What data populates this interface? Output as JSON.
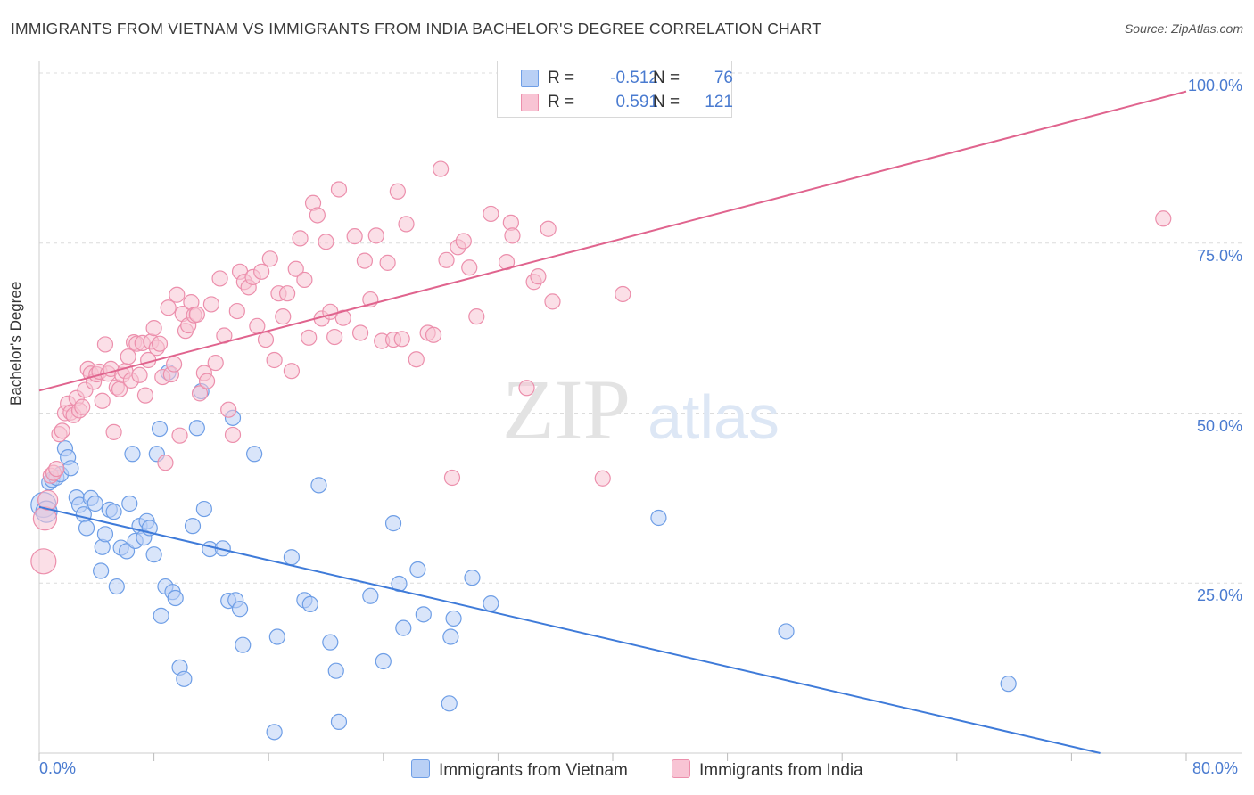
{
  "title": "IMMIGRANTS FROM VIETNAM VS IMMIGRANTS FROM INDIA BACHELOR'S DEGREE CORRELATION CHART",
  "source": "Source: ZipAtlas.com",
  "watermark": {
    "zip": "ZIP",
    "atlas": "atlas"
  },
  "legend": {
    "r_label": "R =",
    "n_label": "N =",
    "vietnam": {
      "r": "-0.512",
      "n": "76",
      "color": "#b9d0f5"
    },
    "india": {
      "r": "0.591",
      "n": "121",
      "color": "#f8c4d4"
    }
  },
  "bottom_legend": {
    "vietnam": "Immigrants from Vietnam",
    "india": "Immigrants from India"
  },
  "colors": {
    "vietnam_fill": "#b9d0f5",
    "vietnam_stroke": "#6e9ee6",
    "vietnam_line": "#3f7bd9",
    "india_fill": "#f8c4d4",
    "india_stroke": "#ec8fac",
    "india_line": "#e0648e",
    "tick_text": "#4a7bd0",
    "grid": "#dcdcdc"
  },
  "chart_data": {
    "type": "scatter",
    "title": "IMMIGRANTS FROM VIETNAM VS IMMIGRANTS FROM INDIA BACHELOR'S DEGREE CORRELATION CHART",
    "xlabel": "",
    "ylabel": "Bachelor's Degree",
    "xlim": [
      0,
      80
    ],
    "ylim": [
      0,
      100
    ],
    "x_tick_labels": [
      "0.0%",
      "80.0%"
    ],
    "y_tick_labels": [
      "25.0%",
      "50.0%",
      "75.0%",
      "100.0%"
    ],
    "y_ticks": [
      25,
      50,
      75,
      100
    ],
    "grid": true,
    "legend_position": "top-center",
    "series": [
      {
        "name": "Immigrants from Vietnam",
        "r": -0.512,
        "n": 76,
        "trend": {
          "x": [
            0,
            74
          ],
          "y": [
            36.2,
            0
          ]
        },
        "points": [
          [
            0.3,
            36.5
          ],
          [
            0.5,
            35.5
          ],
          [
            0.7,
            39.8
          ],
          [
            0.9,
            40.2
          ],
          [
            1.2,
            40.5
          ],
          [
            1.5,
            41
          ],
          [
            1.8,
            44.8
          ],
          [
            2,
            43.5
          ],
          [
            2.2,
            41.9
          ],
          [
            2.6,
            37.6
          ],
          [
            2.8,
            36.5
          ],
          [
            3.1,
            35.1
          ],
          [
            3.3,
            33.1
          ],
          [
            3.6,
            37.5
          ],
          [
            3.9,
            36.7
          ],
          [
            4.3,
            26.8
          ],
          [
            4.4,
            30.3
          ],
          [
            4.6,
            32.2
          ],
          [
            4.9,
            35.8
          ],
          [
            5.2,
            35.5
          ],
          [
            5.4,
            24.5
          ],
          [
            5.7,
            30.2
          ],
          [
            6.1,
            29.7
          ],
          [
            6.3,
            36.7
          ],
          [
            6.5,
            44
          ],
          [
            6.7,
            31.2
          ],
          [
            7,
            33.4
          ],
          [
            7.3,
            31.7
          ],
          [
            7.5,
            34.1
          ],
          [
            7.7,
            33.1
          ],
          [
            8,
            29.2
          ],
          [
            8.2,
            44
          ],
          [
            8.4,
            47.7
          ],
          [
            8.5,
            20.2
          ],
          [
            8.8,
            24.5
          ],
          [
            9,
            56
          ],
          [
            9.3,
            23.7
          ],
          [
            9.5,
            22.8
          ],
          [
            9.8,
            12.6
          ],
          [
            10.1,
            10.9
          ],
          [
            10.7,
            33.4
          ],
          [
            11,
            47.8
          ],
          [
            11.3,
            53.2
          ],
          [
            11.5,
            35.9
          ],
          [
            11.9,
            30
          ],
          [
            12.8,
            30.1
          ],
          [
            13.2,
            22.4
          ],
          [
            13.5,
            49.3
          ],
          [
            13.7,
            22.5
          ],
          [
            14,
            21.2
          ],
          [
            14.2,
            15.9
          ],
          [
            15,
            44
          ],
          [
            16.4,
            3.1
          ],
          [
            16.6,
            17.1
          ],
          [
            17.6,
            28.8
          ],
          [
            18.5,
            22.5
          ],
          [
            18.9,
            21.9
          ],
          [
            19.5,
            39.4
          ],
          [
            20.3,
            16.3
          ],
          [
            20.7,
            12.1
          ],
          [
            20.9,
            4.6
          ],
          [
            23.1,
            23.1
          ],
          [
            24,
            13.5
          ],
          [
            24.7,
            33.8
          ],
          [
            25.1,
            24.9
          ],
          [
            25.4,
            18.4
          ],
          [
            26.4,
            27
          ],
          [
            26.8,
            20.4
          ],
          [
            28.7,
            17.1
          ],
          [
            28.9,
            19.8
          ],
          [
            28.6,
            7.3
          ],
          [
            30.2,
            25.8
          ],
          [
            31.5,
            22
          ],
          [
            43.2,
            34.6
          ],
          [
            52.1,
            17.9
          ],
          [
            67.6,
            10.2
          ]
        ]
      },
      {
        "name": "Immigrants from India",
        "r": 0.591,
        "n": 121,
        "trend": {
          "x": [
            0,
            80
          ],
          "y": [
            53.3,
            97.3
          ]
        },
        "points": [
          [
            0.3,
            28.2
          ],
          [
            0.4,
            34.5
          ],
          [
            0.6,
            37.2
          ],
          [
            0.8,
            40.8
          ],
          [
            1,
            41.2
          ],
          [
            1.2,
            41.8
          ],
          [
            1.4,
            46.9
          ],
          [
            1.6,
            47.4
          ],
          [
            1.8,
            50
          ],
          [
            2,
            51.4
          ],
          [
            2.2,
            50.1
          ],
          [
            2.4,
            49.7
          ],
          [
            2.6,
            52.2
          ],
          [
            2.8,
            50.4
          ],
          [
            3,
            50.9
          ],
          [
            3.2,
            53.4
          ],
          [
            3.4,
            56.5
          ],
          [
            3.6,
            55.8
          ],
          [
            3.8,
            54.6
          ],
          [
            4,
            55.7
          ],
          [
            4.2,
            56.1
          ],
          [
            4.4,
            51.8
          ],
          [
            4.6,
            60.1
          ],
          [
            4.8,
            55.8
          ],
          [
            5,
            56.5
          ],
          [
            5.2,
            47.2
          ],
          [
            5.4,
            53.8
          ],
          [
            5.6,
            53.5
          ],
          [
            5.8,
            55.6
          ],
          [
            6,
            56.2
          ],
          [
            6.2,
            58.3
          ],
          [
            6.4,
            54.8
          ],
          [
            6.6,
            60.4
          ],
          [
            6.8,
            60.2
          ],
          [
            7,
            55.6
          ],
          [
            7.2,
            60.3
          ],
          [
            7.4,
            52.6
          ],
          [
            7.6,
            57.8
          ],
          [
            7.8,
            60.5
          ],
          [
            8,
            62.5
          ],
          [
            8.2,
            59.6
          ],
          [
            8.4,
            60.2
          ],
          [
            8.6,
            55.3
          ],
          [
            8.8,
            42.7
          ],
          [
            9,
            65.5
          ],
          [
            9.2,
            55.7
          ],
          [
            9.4,
            57.2
          ],
          [
            9.6,
            67.4
          ],
          [
            9.8,
            46.7
          ],
          [
            10,
            64.6
          ],
          [
            10.2,
            62.1
          ],
          [
            10.4,
            62.9
          ],
          [
            10.6,
            66.3
          ],
          [
            10.8,
            64.4
          ],
          [
            11,
            64.5
          ],
          [
            11.2,
            52.9
          ],
          [
            11.5,
            55.9
          ],
          [
            11.7,
            54.7
          ],
          [
            12,
            66
          ],
          [
            12.3,
            57.4
          ],
          [
            12.6,
            69.8
          ],
          [
            12.9,
            61.4
          ],
          [
            13.2,
            50.5
          ],
          [
            13.5,
            46.8
          ],
          [
            13.8,
            65
          ],
          [
            14,
            70.8
          ],
          [
            14.3,
            69.3
          ],
          [
            14.6,
            68.5
          ],
          [
            14.9,
            70
          ],
          [
            15.2,
            62.8
          ],
          [
            15.5,
            70.8
          ],
          [
            15.8,
            60.8
          ],
          [
            16.1,
            72.7
          ],
          [
            16.4,
            57.8
          ],
          [
            16.7,
            67.6
          ],
          [
            17,
            64.2
          ],
          [
            17.3,
            67.6
          ],
          [
            17.6,
            56.2
          ],
          [
            17.9,
            71.2
          ],
          [
            18.2,
            75.7
          ],
          [
            18.5,
            69.6
          ],
          [
            18.8,
            61.1
          ],
          [
            19.1,
            80.9
          ],
          [
            19.4,
            79.1
          ],
          [
            19.7,
            63.9
          ],
          [
            20,
            75.2
          ],
          [
            20.3,
            64.9
          ],
          [
            20.6,
            61.2
          ],
          [
            20.9,
            82.9
          ],
          [
            21.2,
            64
          ],
          [
            22,
            76
          ],
          [
            22.4,
            61.8
          ],
          [
            22.7,
            72.4
          ],
          [
            23.1,
            66.7
          ],
          [
            23.5,
            76.1
          ],
          [
            23.9,
            60.6
          ],
          [
            24.3,
            72.1
          ],
          [
            24.7,
            60.8
          ],
          [
            25,
            82.6
          ],
          [
            25.3,
            60.9
          ],
          [
            25.6,
            77.8
          ],
          [
            26.3,
            57.9
          ],
          [
            27.1,
            61.8
          ],
          [
            27.5,
            61.5
          ],
          [
            28,
            85.9
          ],
          [
            28.4,
            72.5
          ],
          [
            28.8,
            40.5
          ],
          [
            29.2,
            74.4
          ],
          [
            29.6,
            75.3
          ],
          [
            30,
            71.4
          ],
          [
            30.5,
            64.2
          ],
          [
            31.5,
            79.3
          ],
          [
            32.6,
            72.2
          ],
          [
            32.9,
            78
          ],
          [
            33,
            76.1
          ],
          [
            34,
            53.7
          ],
          [
            34.5,
            69.3
          ],
          [
            34.8,
            70.1
          ],
          [
            35.5,
            77.1
          ],
          [
            35.8,
            66.4
          ],
          [
            39.3,
            40.4
          ],
          [
            40.7,
            67.5
          ],
          [
            78.4,
            78.6
          ]
        ]
      }
    ]
  }
}
